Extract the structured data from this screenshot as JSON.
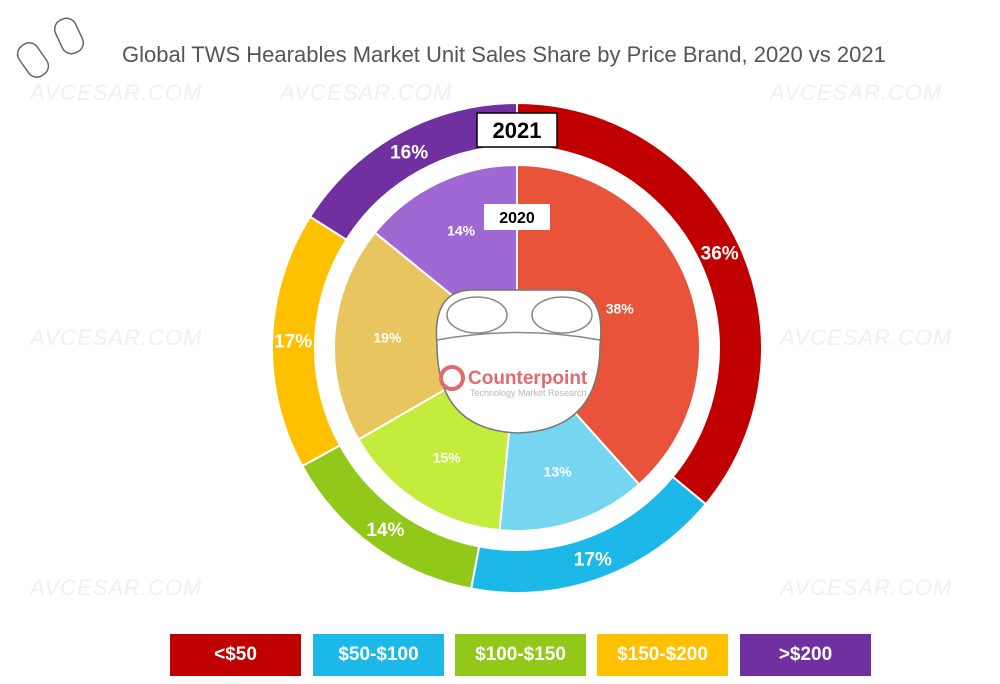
{
  "chart_data": {
    "type": "pie",
    "title": "Global TWS Hearables Market Unit Sales Share by Price Brand, 2020 vs 2021",
    "categories": [
      "<$50",
      "$50-$100",
      "$100-$150",
      "$150-$200",
      ">$200"
    ],
    "series": [
      {
        "name": "2021",
        "ring": "outer",
        "values": [
          36,
          17,
          14,
          17,
          16
        ],
        "labels": [
          "36%",
          "17%",
          "14%",
          "17%",
          "16%"
        ],
        "colors": [
          "#c00000",
          "#1cb9e8",
          "#92c81a",
          "#ffc000",
          "#7030a0"
        ]
      },
      {
        "name": "2020",
        "ring": "inner",
        "values": [
          38,
          13,
          15,
          19,
          14
        ],
        "labels": [
          "38%",
          "13%",
          "15%",
          "19%",
          "14%"
        ],
        "colors": [
          "#e8533a",
          "#76d6f1",
          "#c3ec3c",
          "#e8c55e",
          "#a068d2"
        ]
      }
    ],
    "legend": "bottom"
  },
  "logo": {
    "brand": "Counterpoint",
    "tagline": "Technology Market Research"
  },
  "watermark": "AVCESAR.COM"
}
